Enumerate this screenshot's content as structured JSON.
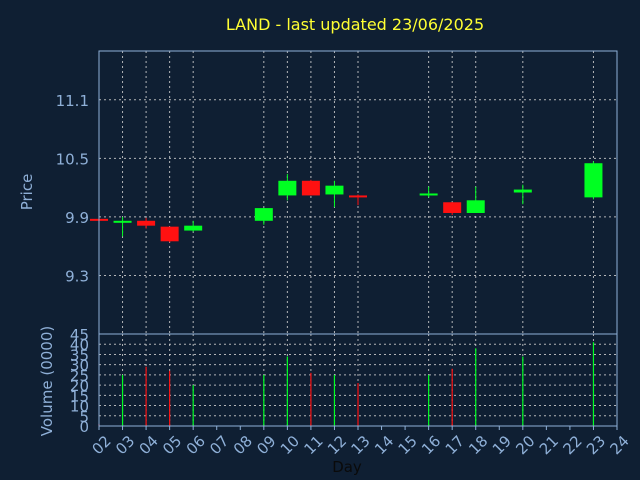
{
  "chart_data": [
    {
      "type": "candlestick",
      "title": "LAND - last updated 23/06/2025",
      "ylabel": "Price",
      "ylim": [
        8.7,
        11.6
      ],
      "yticks": [
        9.3,
        9.9,
        10.5,
        11.1
      ],
      "grid": true,
      "colors": {
        "up": "#00ff22",
        "down": "#ff1111"
      },
      "candles": [
        {
          "x": "02",
          "open": 9.88,
          "close": 9.87,
          "high": 9.89,
          "low": 9.86
        },
        {
          "x": "03",
          "open": 9.84,
          "close": 9.86,
          "high": 9.9,
          "low": 9.7
        },
        {
          "x": "04",
          "open": 9.86,
          "close": 9.81,
          "high": 9.89,
          "low": 9.78
        },
        {
          "x": "05",
          "open": 9.8,
          "close": 9.65,
          "high": 9.8,
          "low": 9.64
        },
        {
          "x": "06",
          "open": 9.76,
          "close": 9.81,
          "high": 9.86,
          "low": 9.75
        },
        {
          "x": "09",
          "open": 9.86,
          "close": 9.99,
          "high": 9.99,
          "low": 9.82
        },
        {
          "x": "10",
          "open": 10.12,
          "close": 10.27,
          "high": 10.34,
          "low": 10.07
        },
        {
          "x": "11",
          "open": 10.27,
          "close": 10.12,
          "high": 10.28,
          "low": 10.12
        },
        {
          "x": "12",
          "open": 10.13,
          "close": 10.22,
          "high": 10.27,
          "low": 10.0
        },
        {
          "x": "13",
          "open": 10.12,
          "close": 10.11,
          "high": 10.13,
          "low": 10.02
        },
        {
          "x": "16",
          "open": 10.13,
          "close": 10.14,
          "high": 10.21,
          "low": 10.1
        },
        {
          "x": "17",
          "open": 10.05,
          "close": 9.94,
          "high": 10.05,
          "low": 9.92
        },
        {
          "x": "18",
          "open": 9.94,
          "close": 10.07,
          "high": 10.21,
          "low": 9.94
        },
        {
          "x": "20",
          "open": 10.15,
          "close": 10.18,
          "high": 10.23,
          "low": 10.03
        },
        {
          "x": "23",
          "open": 10.1,
          "close": 10.45,
          "high": 10.47,
          "low": 10.08
        }
      ]
    },
    {
      "type": "bar",
      "ylabel": "Volume (0000)",
      "xlabel": "Day",
      "ylim": [
        0,
        45
      ],
      "yticks": [
        0,
        5,
        10,
        15,
        20,
        25,
        30,
        35,
        40,
        45
      ],
      "grid": true,
      "categories": [
        "02",
        "03",
        "04",
        "05",
        "06",
        "07",
        "08",
        "09",
        "10",
        "11",
        "12",
        "13",
        "14",
        "15",
        "16",
        "17",
        "18",
        "19",
        "20",
        "21",
        "22",
        "23",
        "24"
      ],
      "bars": [
        {
          "x": "02",
          "value": 1,
          "direction": "down"
        },
        {
          "x": "03",
          "value": 25,
          "direction": "up"
        },
        {
          "x": "04",
          "value": 29,
          "direction": "down"
        },
        {
          "x": "05",
          "value": 27,
          "direction": "down"
        },
        {
          "x": "06",
          "value": 20,
          "direction": "up"
        },
        {
          "x": "09",
          "value": 25,
          "direction": "up"
        },
        {
          "x": "10",
          "value": 34,
          "direction": "up"
        },
        {
          "x": "11",
          "value": 26,
          "direction": "down"
        },
        {
          "x": "12",
          "value": 25,
          "direction": "up"
        },
        {
          "x": "13",
          "value": 21,
          "direction": "down"
        },
        {
          "x": "16",
          "value": 25,
          "direction": "up"
        },
        {
          "x": "17",
          "value": 28,
          "direction": "down"
        },
        {
          "x": "18",
          "value": 38,
          "direction": "up"
        },
        {
          "x": "20",
          "value": 34,
          "direction": "up"
        },
        {
          "x": "23",
          "value": 41,
          "direction": "up"
        }
      ]
    }
  ]
}
